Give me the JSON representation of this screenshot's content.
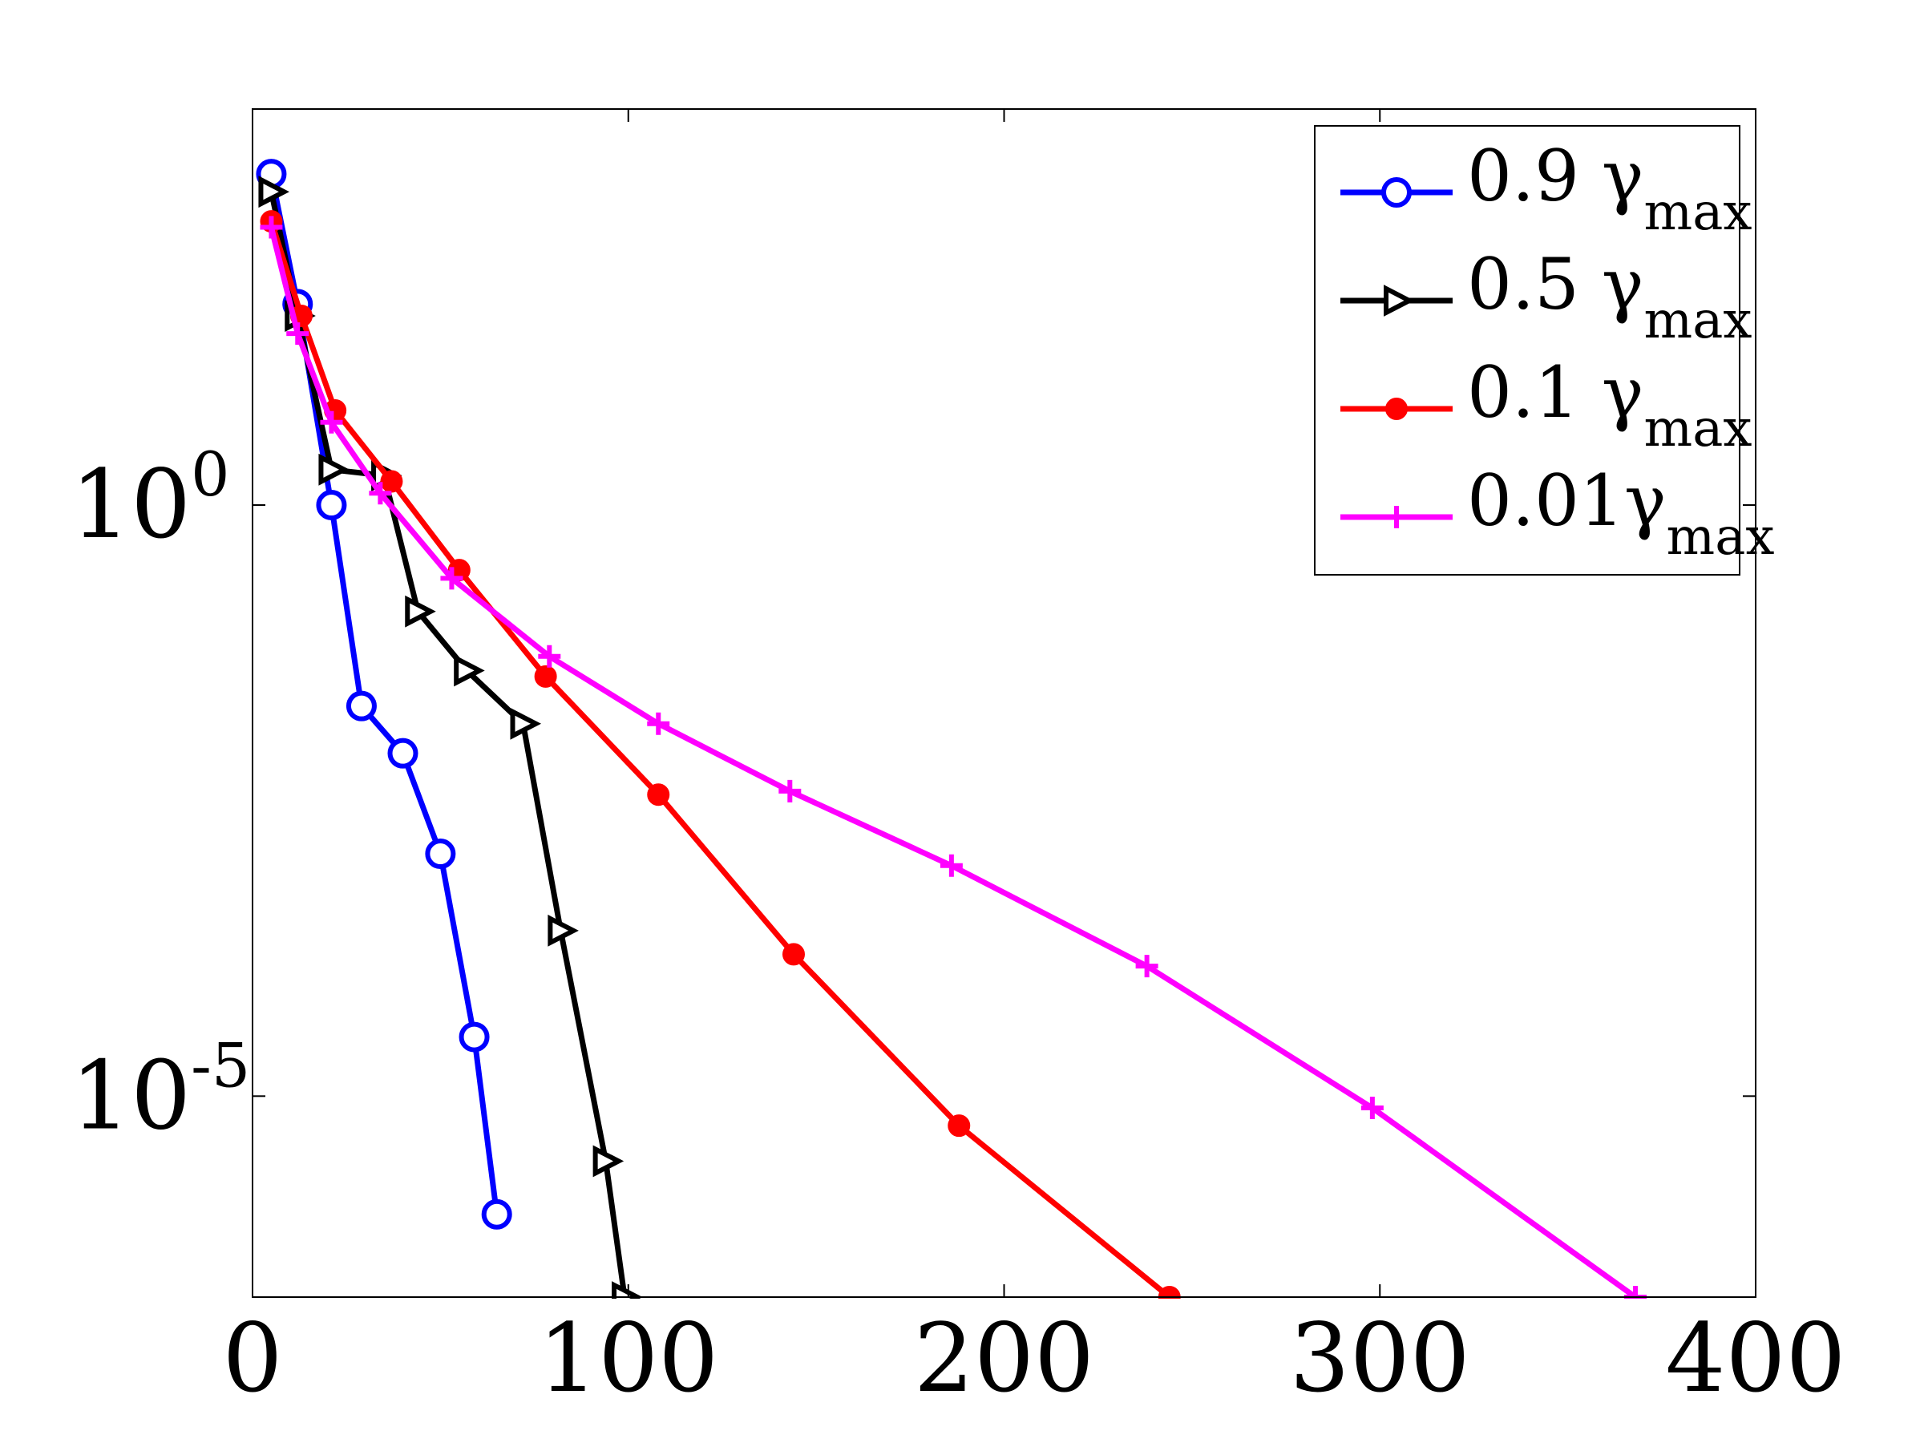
{
  "chart_data": {
    "type": "line",
    "title": "",
    "xlabel": "",
    "ylabel": "",
    "xlim": [
      0,
      400
    ],
    "ylim_log10": [
      -6.7,
      3.35
    ],
    "yscale": "log",
    "x_ticks": [
      0,
      100,
      200,
      300,
      400
    ],
    "x_tick_labels": [
      "0",
      "100",
      "200",
      "300",
      "400"
    ],
    "y_ticks": [
      {
        "value_log10": 0,
        "base": "10",
        "exponent": "0"
      },
      {
        "value_log10": -5,
        "base": "10",
        "exponent": "-5"
      }
    ],
    "grid": false,
    "legend_position": "top-right",
    "series": [
      {
        "name": "0.9 γmax",
        "legend_main": "0.9 γ",
        "legend_sub": "max",
        "color": "#0000ff",
        "marker": "circle",
        "points": [
          [
            5,
            2.8
          ],
          [
            12,
            1.7
          ],
          [
            21,
            0
          ],
          [
            29,
            -1.7
          ],
          [
            40,
            -2.1
          ],
          [
            50,
            -2.95
          ],
          [
            59,
            -4.5
          ],
          [
            65,
            -6.0
          ]
        ]
      },
      {
        "name": "0.5 γmax",
        "legend_main": "0.5 γ",
        "legend_sub": "max",
        "color": "#000000",
        "marker": "triangle-right",
        "points": [
          [
            5,
            2.65
          ],
          [
            12,
            1.6
          ],
          [
            21,
            0.3
          ],
          [
            35,
            0.25
          ],
          [
            44,
            -0.9
          ],
          [
            57,
            -1.4
          ],
          [
            72,
            -1.85
          ],
          [
            82,
            -3.6
          ],
          [
            94,
            -5.55
          ],
          [
            99,
            -6.7
          ]
        ]
      },
      {
        "name": "0.1 γmax",
        "legend_main": "0.1 γ",
        "legend_sub": "max",
        "color": "#ff0000",
        "marker": "filled-circle",
        "points": [
          [
            5,
            2.4
          ],
          [
            13,
            1.6
          ],
          [
            22,
            0.8
          ],
          [
            37,
            0.2
          ],
          [
            55,
            -0.55
          ],
          [
            78,
            -1.45
          ],
          [
            108,
            -2.45
          ],
          [
            144,
            -3.8
          ],
          [
            188,
            -5.25
          ],
          [
            244,
            -6.7
          ]
        ]
      },
      {
        "name": "0.01γmax",
        "legend_main": "0.01γ",
        "legend_sub": "max",
        "color": "#ff00ff",
        "marker": "plus",
        "points": [
          [
            5,
            2.35
          ],
          [
            12,
            1.45
          ],
          [
            21,
            0.7
          ],
          [
            34,
            0.1
          ],
          [
            53,
            -0.62
          ],
          [
            79,
            -1.28
          ],
          [
            108,
            -1.85
          ],
          [
            143,
            -2.42
          ],
          [
            186,
            -3.05
          ],
          [
            238,
            -3.9
          ],
          [
            298,
            -5.1
          ],
          [
            368,
            -6.7
          ]
        ]
      }
    ]
  }
}
